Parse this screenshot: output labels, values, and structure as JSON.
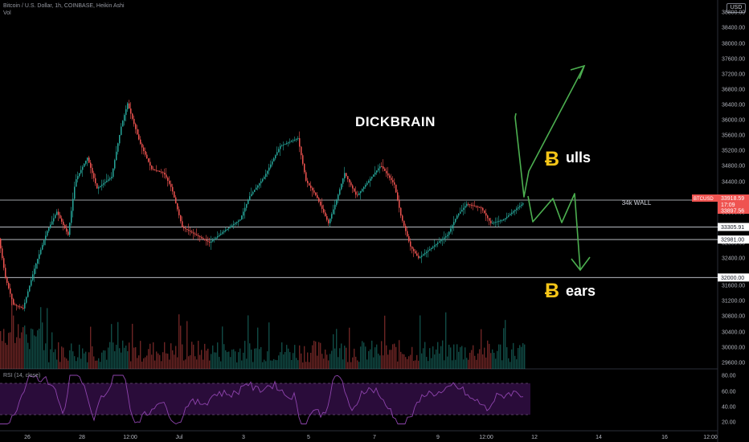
{
  "header": {
    "symbol_line": "Bitcoin / U.S. Dollar, 1h, COINBASE, Heikin Ashi",
    "volume_label": "Vol",
    "currency": "USD",
    "rsi_label": "RSI (14, close)"
  },
  "price_axis": {
    "ticks": [
      "38800.00",
      "38400.00",
      "38000.00",
      "37600.00",
      "37200.00",
      "36800.00",
      "36400.00",
      "36000.00",
      "35600.00",
      "35200.00",
      "34800.00",
      "34400.00",
      "33600.00",
      "33200.00",
      "32800.00",
      "32400.00",
      "31600.00",
      "31200.00",
      "30800.00",
      "30400.00",
      "30000.00",
      "29600.00"
    ],
    "highlighted": [
      "34000.00",
      "33305.91",
      "32981.00",
      "32000.00"
    ],
    "current_price": {
      "symbol": "BTCUSD",
      "price": "33918.59",
      "timer": "17:09",
      "bid": "33897.56",
      "color": "#ef5350"
    }
  },
  "rsi_axis": {
    "ticks": [
      "80.00",
      "60.00",
      "40.00",
      "20.00"
    ]
  },
  "time_axis": {
    "ticks": [
      "26",
      "28",
      "12:00",
      "Jul",
      "3",
      "5",
      "7",
      "9",
      "12:00",
      "12",
      "14",
      "16",
      "12:00"
    ]
  },
  "annotations": {
    "title": "DICKBRAIN",
    "wall_label": "34k WALL",
    "bulls_symbol": "Ƀ",
    "bulls_text": "ulls",
    "bears_symbol": "Ƀ",
    "bears_text": "ears",
    "arrow_color": "#4caf50",
    "btc_color": "#f5c518"
  },
  "colors": {
    "up": "#26a69a",
    "down": "#ef5350",
    "rsi_line": "#8e44ad",
    "rsi_band": "#2a0c3a",
    "level_line": "#d1d4dc"
  },
  "chart_data": {
    "type": "candlestick",
    "title": "Bitcoin / U.S. Dollar, 1h, COINBASE, Heikin Ashi",
    "ylim": [
      29400,
      39000
    ],
    "x_ticks": [
      "26",
      "28",
      "12:00",
      "Jul",
      "3",
      "5",
      "7",
      "9",
      "12:00",
      "12",
      "14",
      "16",
      "12:00"
    ],
    "price_path": [
      {
        "t": 0,
        "p": 33000
      },
      {
        "t": 8,
        "p": 32000
      },
      {
        "t": 18,
        "p": 31300
      },
      {
        "t": 30,
        "p": 31200
      },
      {
        "t": 45,
        "p": 32300
      },
      {
        "t": 60,
        "p": 33200
      },
      {
        "t": 72,
        "p": 33700
      },
      {
        "t": 86,
        "p": 33100
      },
      {
        "t": 95,
        "p": 34500
      },
      {
        "t": 110,
        "p": 35100
      },
      {
        "t": 122,
        "p": 34300
      },
      {
        "t": 140,
        "p": 34600
      },
      {
        "t": 152,
        "p": 35900
      },
      {
        "t": 160,
        "p": 36500
      },
      {
        "t": 175,
        "p": 35500
      },
      {
        "t": 190,
        "p": 34800
      },
      {
        "t": 205,
        "p": 34700
      },
      {
        "t": 215,
        "p": 34300
      },
      {
        "t": 228,
        "p": 33300
      },
      {
        "t": 245,
        "p": 33100
      },
      {
        "t": 262,
        "p": 32900
      },
      {
        "t": 280,
        "p": 33200
      },
      {
        "t": 300,
        "p": 33500
      },
      {
        "t": 312,
        "p": 34100
      },
      {
        "t": 330,
        "p": 34600
      },
      {
        "t": 350,
        "p": 35400
      },
      {
        "t": 372,
        "p": 35600
      },
      {
        "t": 382,
        "p": 34500
      },
      {
        "t": 395,
        "p": 34100
      },
      {
        "t": 410,
        "p": 33400
      },
      {
        "t": 420,
        "p": 34000
      },
      {
        "t": 430,
        "p": 34700
      },
      {
        "t": 445,
        "p": 34100
      },
      {
        "t": 460,
        "p": 34500
      },
      {
        "t": 475,
        "p": 34900
      },
      {
        "t": 492,
        "p": 34400
      },
      {
        "t": 500,
        "p": 33600
      },
      {
        "t": 512,
        "p": 32800
      },
      {
        "t": 522,
        "p": 32500
      },
      {
        "t": 540,
        "p": 32800
      },
      {
        "t": 558,
        "p": 33100
      },
      {
        "t": 570,
        "p": 33600
      },
      {
        "t": 582,
        "p": 33900
      },
      {
        "t": 600,
        "p": 33800
      },
      {
        "t": 612,
        "p": 33400
      },
      {
        "t": 628,
        "p": 33500
      },
      {
        "t": 645,
        "p": 33800
      },
      {
        "t": 652,
        "p": 33918
      }
    ],
    "levels": [
      34000,
      33305.91,
      32981,
      32000
    ],
    "last_price": 33918.59,
    "rsi": {
      "ylim": [
        0,
        100
      ],
      "bands": [
        70,
        30
      ],
      "last": 64
    }
  }
}
